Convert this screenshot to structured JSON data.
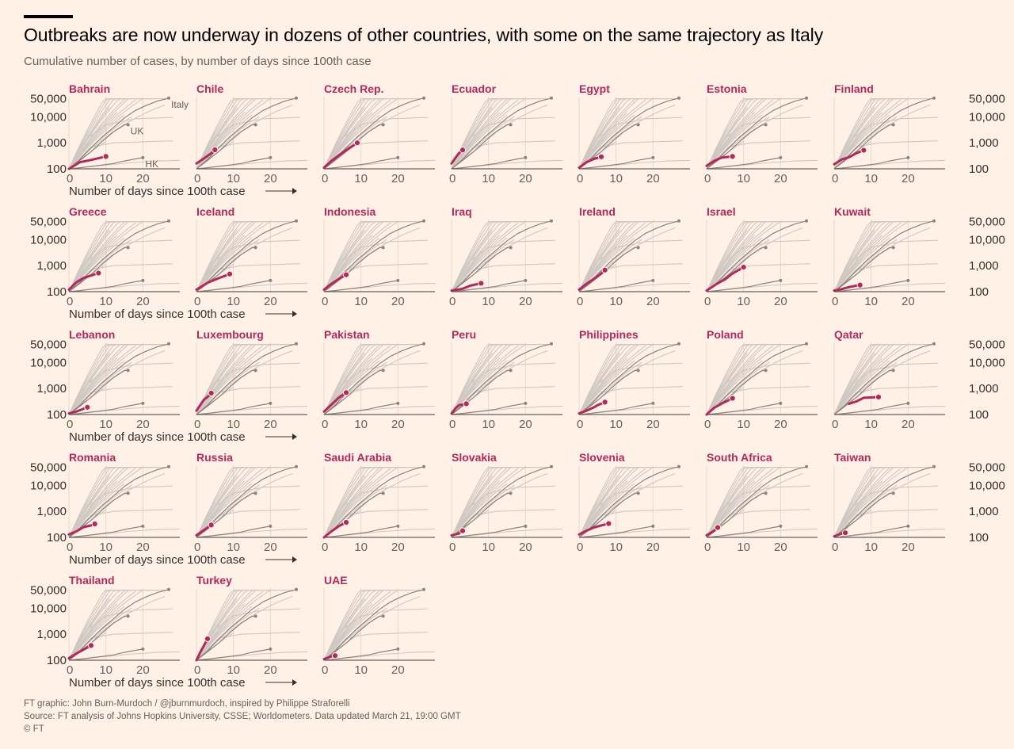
{
  "header": {
    "title": "Outbreaks are now underway in dozens of other countries, with some on the same trajectory as Italy",
    "subtitle": "Cumulative number of cases, by number of days since 100th case"
  },
  "footer": {
    "credit": "FT graphic: John Burn-Murdoch / @jburnmurdoch, inspired by Philippe Straforelli",
    "source": "Source: FT analysis of Johns Hopkins University, CSSE; Worldometers. Data updated March 21, 19:00 GMT",
    "copyright": "© FT"
  },
  "colors": {
    "background": "#fff1e5",
    "highlight": "#b5285c",
    "reference": "#8a8480",
    "others": "#cfc8c2"
  },
  "chart_data": {
    "type": "line",
    "scale": "log",
    "xlabel": "Number of days since 100th case",
    "x_ticks": [
      0,
      10,
      20
    ],
    "y_ticks": [
      100,
      1000,
      10000,
      50000
    ],
    "y_tick_labels": [
      "100",
      "1,000",
      "10,000",
      "50,000"
    ],
    "xlim": [
      0,
      30
    ],
    "ylim": [
      100,
      60000
    ],
    "reference_series": [
      {
        "name": "Italy",
        "values": [
          [
            0,
            100
          ],
          [
            3,
            230
          ],
          [
            6,
            650
          ],
          [
            9,
            1700
          ],
          [
            12,
            3900
          ],
          [
            15,
            9100
          ],
          [
            18,
            17700
          ],
          [
            21,
            28000
          ],
          [
            24,
            41000
          ],
          [
            27,
            53000
          ]
        ]
      },
      {
        "name": "UK",
        "values": [
          [
            0,
            100
          ],
          [
            3,
            210
          ],
          [
            6,
            460
          ],
          [
            9,
            1140
          ],
          [
            12,
            2630
          ],
          [
            15,
            4900
          ],
          [
            16,
            5000
          ]
        ]
      },
      {
        "name": "HK",
        "values": [
          [
            0,
            100
          ],
          [
            3,
            110
          ],
          [
            6,
            125
          ],
          [
            9,
            140
          ],
          [
            12,
            160
          ],
          [
            15,
            200
          ],
          [
            18,
            240
          ],
          [
            20,
            270
          ]
        ]
      }
    ],
    "countries": [
      {
        "name": "Bahrain",
        "values": [
          [
            0,
            100
          ],
          [
            3,
            180
          ],
          [
            6,
            220
          ],
          [
            10,
            300
          ]
        ]
      },
      {
        "name": "Chile",
        "values": [
          [
            0,
            160
          ],
          [
            2,
            250
          ],
          [
            4,
            400
          ],
          [
            5,
            540
          ]
        ]
      },
      {
        "name": "Czech Rep.",
        "values": [
          [
            0,
            110
          ],
          [
            2,
            200
          ],
          [
            4,
            330
          ],
          [
            6,
            520
          ],
          [
            9,
            1000
          ]
        ]
      },
      {
        "name": "Ecuador",
        "values": [
          [
            0,
            160
          ],
          [
            1,
            260
          ],
          [
            2,
            400
          ],
          [
            3,
            530
          ]
        ]
      },
      {
        "name": "Egypt",
        "values": [
          [
            0,
            110
          ],
          [
            2,
            180
          ],
          [
            4,
            240
          ],
          [
            6,
            290
          ]
        ]
      },
      {
        "name": "Estonia",
        "values": [
          [
            0,
            130
          ],
          [
            2,
            200
          ],
          [
            4,
            270
          ],
          [
            7,
            300
          ]
        ]
      },
      {
        "name": "Finland",
        "values": [
          [
            0,
            150
          ],
          [
            2,
            230
          ],
          [
            4,
            280
          ],
          [
            6,
            400
          ],
          [
            8,
            520
          ]
        ]
      },
      {
        "name": "Greece",
        "values": [
          [
            0,
            120
          ],
          [
            2,
            230
          ],
          [
            4,
            340
          ],
          [
            6,
            420
          ],
          [
            8,
            520
          ]
        ]
      },
      {
        "name": "Iceland",
        "values": [
          [
            0,
            120
          ],
          [
            3,
            220
          ],
          [
            6,
            330
          ],
          [
            9,
            480
          ]
        ]
      },
      {
        "name": "Indonesia",
        "values": [
          [
            0,
            120
          ],
          [
            2,
            200
          ],
          [
            4,
            310
          ],
          [
            6,
            450
          ]
        ]
      },
      {
        "name": "Iraq",
        "values": [
          [
            0,
            110
          ],
          [
            3,
            130
          ],
          [
            5,
            170
          ],
          [
            8,
            210
          ]
        ]
      },
      {
        "name": "Ireland",
        "values": [
          [
            0,
            120
          ],
          [
            2,
            200
          ],
          [
            4,
            310
          ],
          [
            6,
            500
          ],
          [
            7,
            680
          ]
        ]
      },
      {
        "name": "Israel",
        "values": [
          [
            0,
            110
          ],
          [
            3,
            210
          ],
          [
            5,
            300
          ],
          [
            7,
            500
          ],
          [
            10,
            880
          ]
        ]
      },
      {
        "name": "Kuwait",
        "values": [
          [
            0,
            110
          ],
          [
            2,
            125
          ],
          [
            4,
            150
          ],
          [
            7,
            180
          ]
        ]
      },
      {
        "name": "Lebanon",
        "values": [
          [
            0,
            110
          ],
          [
            2,
            130
          ],
          [
            5,
            190
          ]
        ]
      },
      {
        "name": "Luxembourg",
        "values": [
          [
            0,
            140
          ],
          [
            1,
            230
          ],
          [
            2,
            370
          ],
          [
            3,
            480
          ],
          [
            4,
            670
          ]
        ]
      },
      {
        "name": "Pakistan",
        "values": [
          [
            0,
            130
          ],
          [
            2,
            240
          ],
          [
            4,
            450
          ],
          [
            6,
            700
          ]
        ]
      },
      {
        "name": "Peru",
        "values": [
          [
            0,
            110
          ],
          [
            1,
            170
          ],
          [
            2,
            230
          ],
          [
            4,
            260
          ]
        ]
      },
      {
        "name": "Philippines",
        "values": [
          [
            0,
            110
          ],
          [
            2,
            140
          ],
          [
            4,
            190
          ],
          [
            5,
            230
          ],
          [
            7,
            300
          ]
        ]
      },
      {
        "name": "Poland",
        "values": [
          [
            0,
            100
          ],
          [
            2,
            180
          ],
          [
            4,
            260
          ],
          [
            6,
            360
          ],
          [
            7,
            420
          ]
        ]
      },
      {
        "name": "Qatar",
        "values": [
          [
            4,
            260
          ],
          [
            6,
            320
          ],
          [
            8,
            440
          ],
          [
            12,
            470
          ]
        ]
      },
      {
        "name": "Romania",
        "values": [
          [
            0,
            130
          ],
          [
            2,
            170
          ],
          [
            4,
            250
          ],
          [
            6,
            290
          ],
          [
            7,
            330
          ]
        ]
      },
      {
        "name": "Russia",
        "values": [
          [
            0,
            120
          ],
          [
            2,
            190
          ],
          [
            4,
            300
          ]
        ]
      },
      {
        "name": "Saudi Arabia",
        "values": [
          [
            0,
            100
          ],
          [
            2,
            170
          ],
          [
            4,
            270
          ],
          [
            6,
            380
          ]
        ]
      },
      {
        "name": "Slovakia",
        "values": [
          [
            0,
            120
          ],
          [
            2,
            140
          ],
          [
            3,
            180
          ]
        ]
      },
      {
        "name": "Slovenia",
        "values": [
          [
            0,
            130
          ],
          [
            2,
            180
          ],
          [
            4,
            240
          ],
          [
            6,
            290
          ],
          [
            8,
            340
          ]
        ]
      },
      {
        "name": "South Africa",
        "values": [
          [
            0,
            120
          ],
          [
            2,
            180
          ],
          [
            3,
            240
          ]
        ]
      },
      {
        "name": "Taiwan",
        "values": [
          [
            0,
            110
          ],
          [
            2,
            140
          ],
          [
            3,
            150
          ]
        ]
      },
      {
        "name": "Thailand",
        "values": [
          [
            0,
            120
          ],
          [
            2,
            180
          ],
          [
            4,
            260
          ],
          [
            6,
            370
          ]
        ]
      },
      {
        "name": "Turkey",
        "values": [
          [
            0,
            100
          ],
          [
            1,
            200
          ],
          [
            2,
            360
          ],
          [
            3,
            670
          ]
        ]
      },
      {
        "name": "UAE",
        "values": [
          [
            0,
            110
          ],
          [
            2,
            140
          ],
          [
            3,
            150
          ]
        ]
      }
    ]
  }
}
